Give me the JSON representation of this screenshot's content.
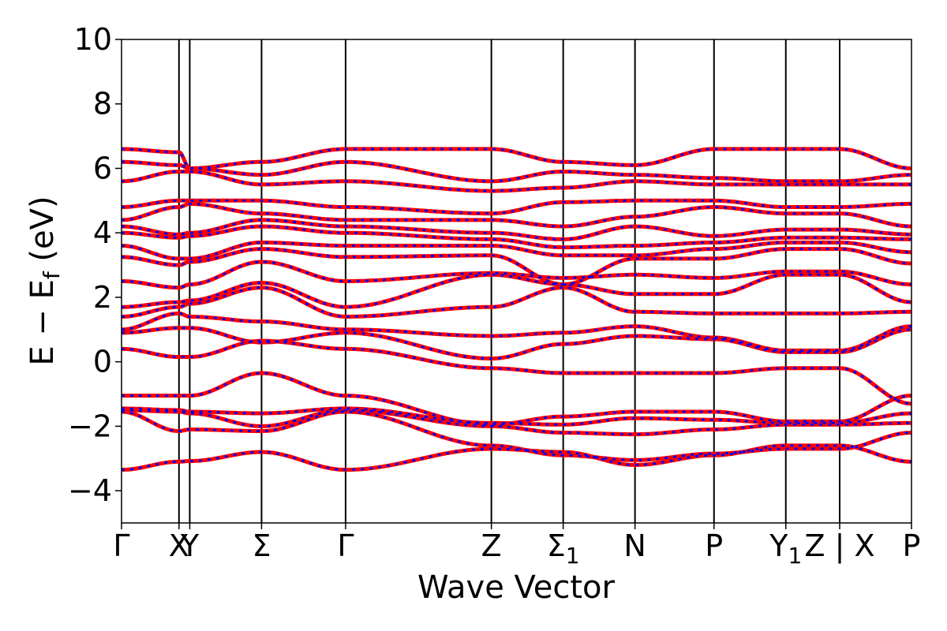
{
  "chart_data": {
    "type": "line",
    "title": "",
    "xlabel": "Wave Vector",
    "ylabel_main": "E − E",
    "ylabel_sub": "f",
    "ylabel_unit": " (eV)",
    "ylim": [
      -5,
      10
    ],
    "yticks": [
      -4,
      -2,
      0,
      2,
      4,
      6,
      8,
      10
    ],
    "ytick_labels": [
      "−4",
      "−2",
      "0",
      "2",
      "4",
      "6",
      "8",
      "10"
    ],
    "xlim": [
      0,
      11.0
    ],
    "kpoints": [
      {
        "pos": 0.0,
        "label": "Γ"
      },
      {
        "pos": 0.8,
        "label": "X"
      },
      {
        "pos": 0.95,
        "label": "Y"
      },
      {
        "pos": 1.95,
        "label": "Σ"
      },
      {
        "pos": 3.12,
        "label": "Γ"
      },
      {
        "pos": 5.15,
        "label": "Z"
      },
      {
        "pos": 6.15,
        "label": "Σ",
        "sub": "1"
      },
      {
        "pos": 7.15,
        "label": "N"
      },
      {
        "pos": 8.25,
        "label": "P"
      },
      {
        "pos": 9.25,
        "label": "Y",
        "sub": "1"
      },
      {
        "pos": 10.0,
        "label": "Z | X"
      },
      {
        "pos": 11.0,
        "label": "P"
      }
    ],
    "series_style": [
      {
        "color": "#ff0000",
        "linestyle": "solid"
      },
      {
        "color": "#0000ff",
        "linestyle": "dotted"
      }
    ],
    "bands": [
      {
        "y": [
          -3.35,
          -3.1,
          -3.08,
          -2.8,
          -3.35,
          -2.7,
          -2.8,
          -3.2,
          -2.9,
          -2.6,
          -2.6,
          -3.1,
          -2.9
        ]
      },
      {
        "y": [
          -1.55,
          -2.15,
          -2.1,
          -2.15,
          -1.55,
          -2.6,
          -2.9,
          -3.05,
          -2.85,
          -2.7,
          -2.7,
          -2.2,
          -2.1
        ]
      },
      {
        "y": [
          -1.5,
          -1.55,
          -1.6,
          -2.0,
          -1.5,
          -2.0,
          -2.2,
          -2.25,
          -2.1,
          -1.95,
          -1.95,
          -1.9,
          -1.95
        ]
      },
      {
        "y": [
          -1.45,
          -1.5,
          -1.55,
          -1.6,
          -1.45,
          -1.9,
          -1.95,
          -1.75,
          -1.8,
          -1.9,
          -1.9,
          -1.6,
          -1.85
        ]
      },
      {
        "y": [
          -1.05,
          -1.05,
          -1.05,
          -0.35,
          -1.05,
          -1.95,
          -1.7,
          -1.55,
          -1.55,
          -1.85,
          -1.85,
          -1.05,
          -0.35
        ]
      },
      {
        "y": [
          0.4,
          0.15,
          0.15,
          0.65,
          0.4,
          -0.2,
          -0.35,
          -0.35,
          -0.35,
          -0.2,
          -0.2,
          -1.3,
          -1.4
        ]
      },
      {
        "y": [
          0.9,
          1.05,
          1.05,
          0.6,
          0.9,
          0.1,
          0.55,
          0.8,
          0.7,
          0.3,
          0.3,
          1.0,
          0.75
        ]
      },
      {
        "y": [
          1.0,
          1.5,
          1.4,
          1.25,
          1.0,
          0.8,
          0.9,
          1.1,
          0.75,
          0.35,
          0.35,
          1.1,
          1.1
        ]
      },
      {
        "y": [
          1.4,
          1.7,
          1.8,
          2.3,
          1.4,
          1.7,
          2.3,
          1.55,
          1.5,
          1.5,
          1.5,
          1.55,
          1.5
        ]
      },
      {
        "y": [
          1.7,
          1.85,
          1.9,
          2.45,
          1.7,
          2.7,
          2.4,
          2.1,
          2.1,
          2.7,
          2.7,
          1.85,
          1.9
        ]
      },
      {
        "y": [
          2.5,
          2.3,
          2.4,
          3.1,
          2.5,
          2.75,
          2.6,
          2.7,
          2.6,
          2.8,
          2.8,
          2.4,
          2.5
        ]
      },
      {
        "y": [
          3.25,
          3.0,
          3.1,
          3.5,
          3.25,
          3.3,
          2.4,
          3.2,
          3.2,
          3.5,
          3.5,
          3.05,
          3.1
        ]
      },
      {
        "y": [
          3.6,
          3.2,
          3.2,
          3.7,
          3.6,
          3.6,
          3.3,
          3.3,
          3.5,
          3.7,
          3.7,
          3.4,
          3.6
        ]
      },
      {
        "y": [
          4.0,
          3.85,
          3.9,
          4.2,
          4.0,
          3.8,
          3.55,
          3.6,
          3.7,
          3.85,
          3.85,
          3.8,
          3.8
        ]
      },
      {
        "y": [
          4.2,
          3.95,
          4.0,
          4.4,
          4.2,
          4.0,
          3.8,
          4.2,
          3.9,
          4.1,
          4.1,
          3.95,
          4.0
        ]
      },
      {
        "y": [
          4.4,
          4.8,
          4.9,
          4.6,
          4.4,
          4.4,
          4.2,
          4.5,
          4.8,
          4.6,
          4.6,
          4.2,
          4.4
        ]
      },
      {
        "y": [
          4.8,
          5.0,
          5.0,
          5.0,
          4.8,
          4.6,
          4.95,
          5.0,
          5.0,
          4.8,
          4.8,
          4.9,
          5.0
        ]
      },
      {
        "y": [
          5.6,
          5.9,
          5.9,
          5.5,
          5.6,
          5.3,
          5.4,
          5.6,
          5.5,
          5.5,
          5.5,
          5.5,
          5.5
        ]
      },
      {
        "y": [
          6.2,
          6.1,
          6.0,
          5.8,
          6.2,
          5.6,
          5.9,
          5.8,
          5.7,
          5.6,
          5.6,
          5.8,
          5.7
        ]
      },
      {
        "y": [
          6.6,
          6.5,
          6.0,
          6.2,
          6.6,
          6.6,
          6.2,
          6.1,
          6.6,
          6.6,
          6.6,
          6.0,
          6.6
        ]
      }
    ]
  }
}
